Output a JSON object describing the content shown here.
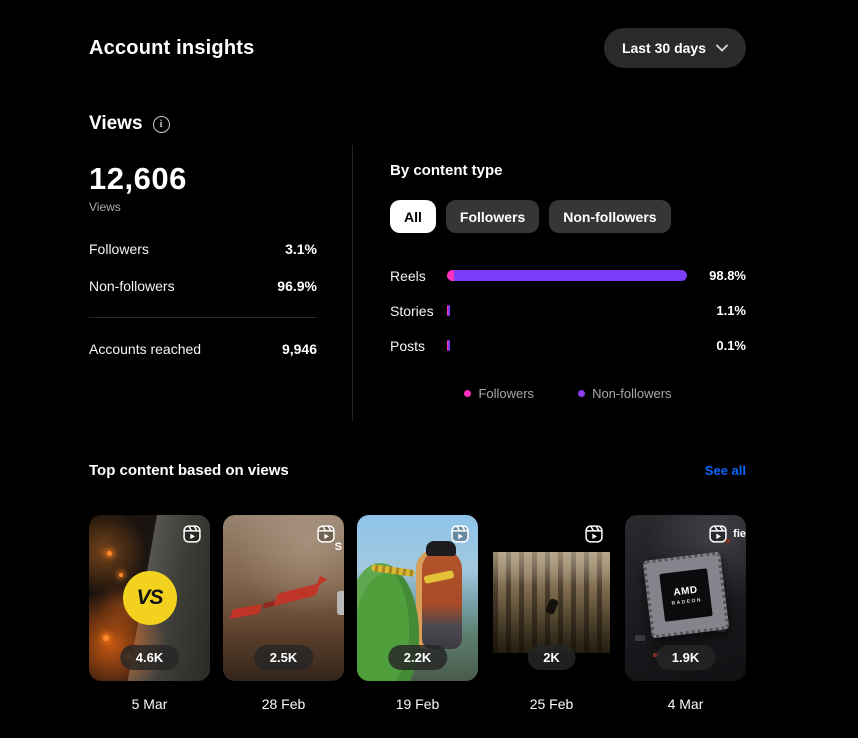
{
  "header": {
    "title": "Account insights",
    "range_button": "Last 30 days"
  },
  "views_section": {
    "title": "Views",
    "total": "12,606",
    "total_label": "Views",
    "breakdown": [
      {
        "label": "Followers",
        "value": "3.1%"
      },
      {
        "label": "Non-followers",
        "value": "96.9%"
      }
    ],
    "reached": {
      "label": "Accounts reached",
      "value": "9,946"
    }
  },
  "content_type": {
    "title": "By content type",
    "tabs": [
      {
        "label": "All",
        "active": true
      },
      {
        "label": "Followers",
        "active": false
      },
      {
        "label": "Non-followers",
        "active": false
      }
    ],
    "bars": [
      {
        "label": "Reels",
        "value": "98.8%",
        "pct": 98.8
      },
      {
        "label": "Stories",
        "value": "1.1%",
        "pct": 1.1
      },
      {
        "label": "Posts",
        "value": "0.1%",
        "pct": 0.1
      }
    ],
    "legend": [
      {
        "label": "Followers",
        "color": "#ff2fbf"
      },
      {
        "label": "Non-followers",
        "color": "#8a3ef0"
      }
    ]
  },
  "top_content": {
    "title": "Top content based on views",
    "see_all": "See all",
    "cards": [
      {
        "views": "4.6K",
        "date": "5 Mar",
        "badge": "VS"
      },
      {
        "views": "2.5K",
        "date": "28 Feb",
        "fragment": "S"
      },
      {
        "views": "2.2K",
        "date": "19 Feb"
      },
      {
        "views": "2K",
        "date": "25 Feb"
      },
      {
        "views": "1.9K",
        "date": "4 Mar",
        "fragment": "fie",
        "chip_brand": "AMD",
        "chip_sub": "RADEON"
      }
    ]
  },
  "colors": {
    "background": "#000000",
    "accent_pink": "#ff2fbf",
    "accent_purple": "#7d3cf8",
    "link_blue": "#0866ff",
    "muted_text": "#a8a8a8"
  }
}
